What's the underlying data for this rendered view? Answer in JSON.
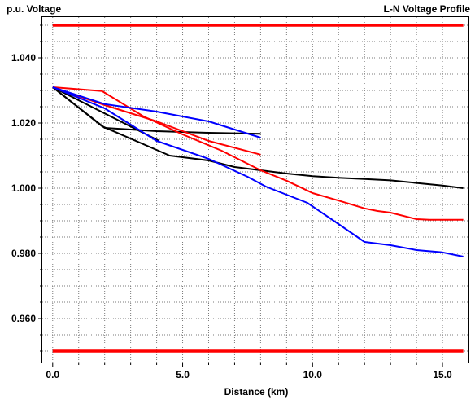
{
  "chart_data": {
    "type": "line",
    "title": "L-N Voltage Profile",
    "ylabel": "p.u. Voltage",
    "xlabel": "Distance (km)",
    "xlim": [
      -0.4,
      16.0
    ],
    "ylim": [
      0.9465,
      1.0525
    ],
    "grid": true,
    "xticks": [
      0.0,
      5.0,
      10.0,
      15.0
    ],
    "xtick_labels": [
      "0.0",
      "5.0",
      "10.0",
      "15.0"
    ],
    "yticks": [
      0.96,
      0.98,
      1.0,
      1.02,
      1.04
    ],
    "ytick_labels": [
      "0.960",
      "0.980",
      "1.000",
      "1.020",
      "1.040"
    ],
    "limit_lines": [
      {
        "name": "upper-limit",
        "y": 1.05,
        "color": "#ff0000"
      },
      {
        "name": "lower-limit",
        "y": 0.95,
        "color": "#ff0000"
      }
    ],
    "series": [
      {
        "color": "#000000",
        "x": [
          0.0,
          1.9,
          4.5,
          6.0,
          7.0,
          8.0,
          9.0,
          10.0,
          11.0,
          12.0,
          13.0,
          14.0,
          15.0,
          15.8
        ],
        "y": [
          1.031,
          1.019,
          1.01,
          1.0085,
          1.0065,
          1.0055,
          1.0045,
          1.0037,
          1.0032,
          1.0028,
          1.0024,
          1.0016,
          1.0008,
          1.0
        ]
      },
      {
        "color": "#000000",
        "x": [
          0.0,
          2.0,
          4.0,
          6.0,
          8.0
        ],
        "y": [
          1.031,
          1.0185,
          1.0175,
          1.017,
          1.0167
        ]
      },
      {
        "color": "#000000",
        "x": [
          0.0,
          4.1
        ],
        "y": [
          1.031,
          1.0145
        ]
      },
      {
        "color": "#ff0000",
        "x": [
          0.0,
          1.9,
          3.5,
          5.0,
          6.5,
          7.5,
          8.0,
          9.0,
          10.0,
          11.0,
          12.0,
          12.5,
          13.0,
          14.0,
          14.5,
          15.8
        ],
        "y": [
          1.031,
          1.0298,
          1.022,
          1.0165,
          1.0115,
          1.0075,
          1.0055,
          1.0023,
          0.9985,
          0.9962,
          0.9938,
          0.993,
          0.9925,
          0.9905,
          0.9903,
          0.9903
        ]
      },
      {
        "color": "#ff0000",
        "x": [
          0.0,
          2.0,
          4.0,
          6.0,
          8.0
        ],
        "y": [
          1.031,
          1.0255,
          1.0205,
          1.0145,
          1.0103
        ]
      },
      {
        "color": "#0000ff",
        "x": [
          0.0,
          2.0,
          4.0,
          6.0,
          7.5,
          8.2,
          9.0,
          9.8,
          11.0,
          12.0,
          13.0,
          14.0,
          15.0,
          15.8
        ],
        "y": [
          1.031,
          1.0245,
          1.0145,
          1.009,
          1.0035,
          1.0005,
          0.998,
          0.9955,
          0.989,
          0.9835,
          0.9825,
          0.981,
          0.9803,
          0.979
        ]
      },
      {
        "color": "#0000ff",
        "x": [
          0.0,
          2.0,
          4.0,
          6.0,
          8.0
        ],
        "y": [
          1.031,
          1.0258,
          1.0235,
          1.0205,
          1.0155
        ]
      }
    ]
  }
}
